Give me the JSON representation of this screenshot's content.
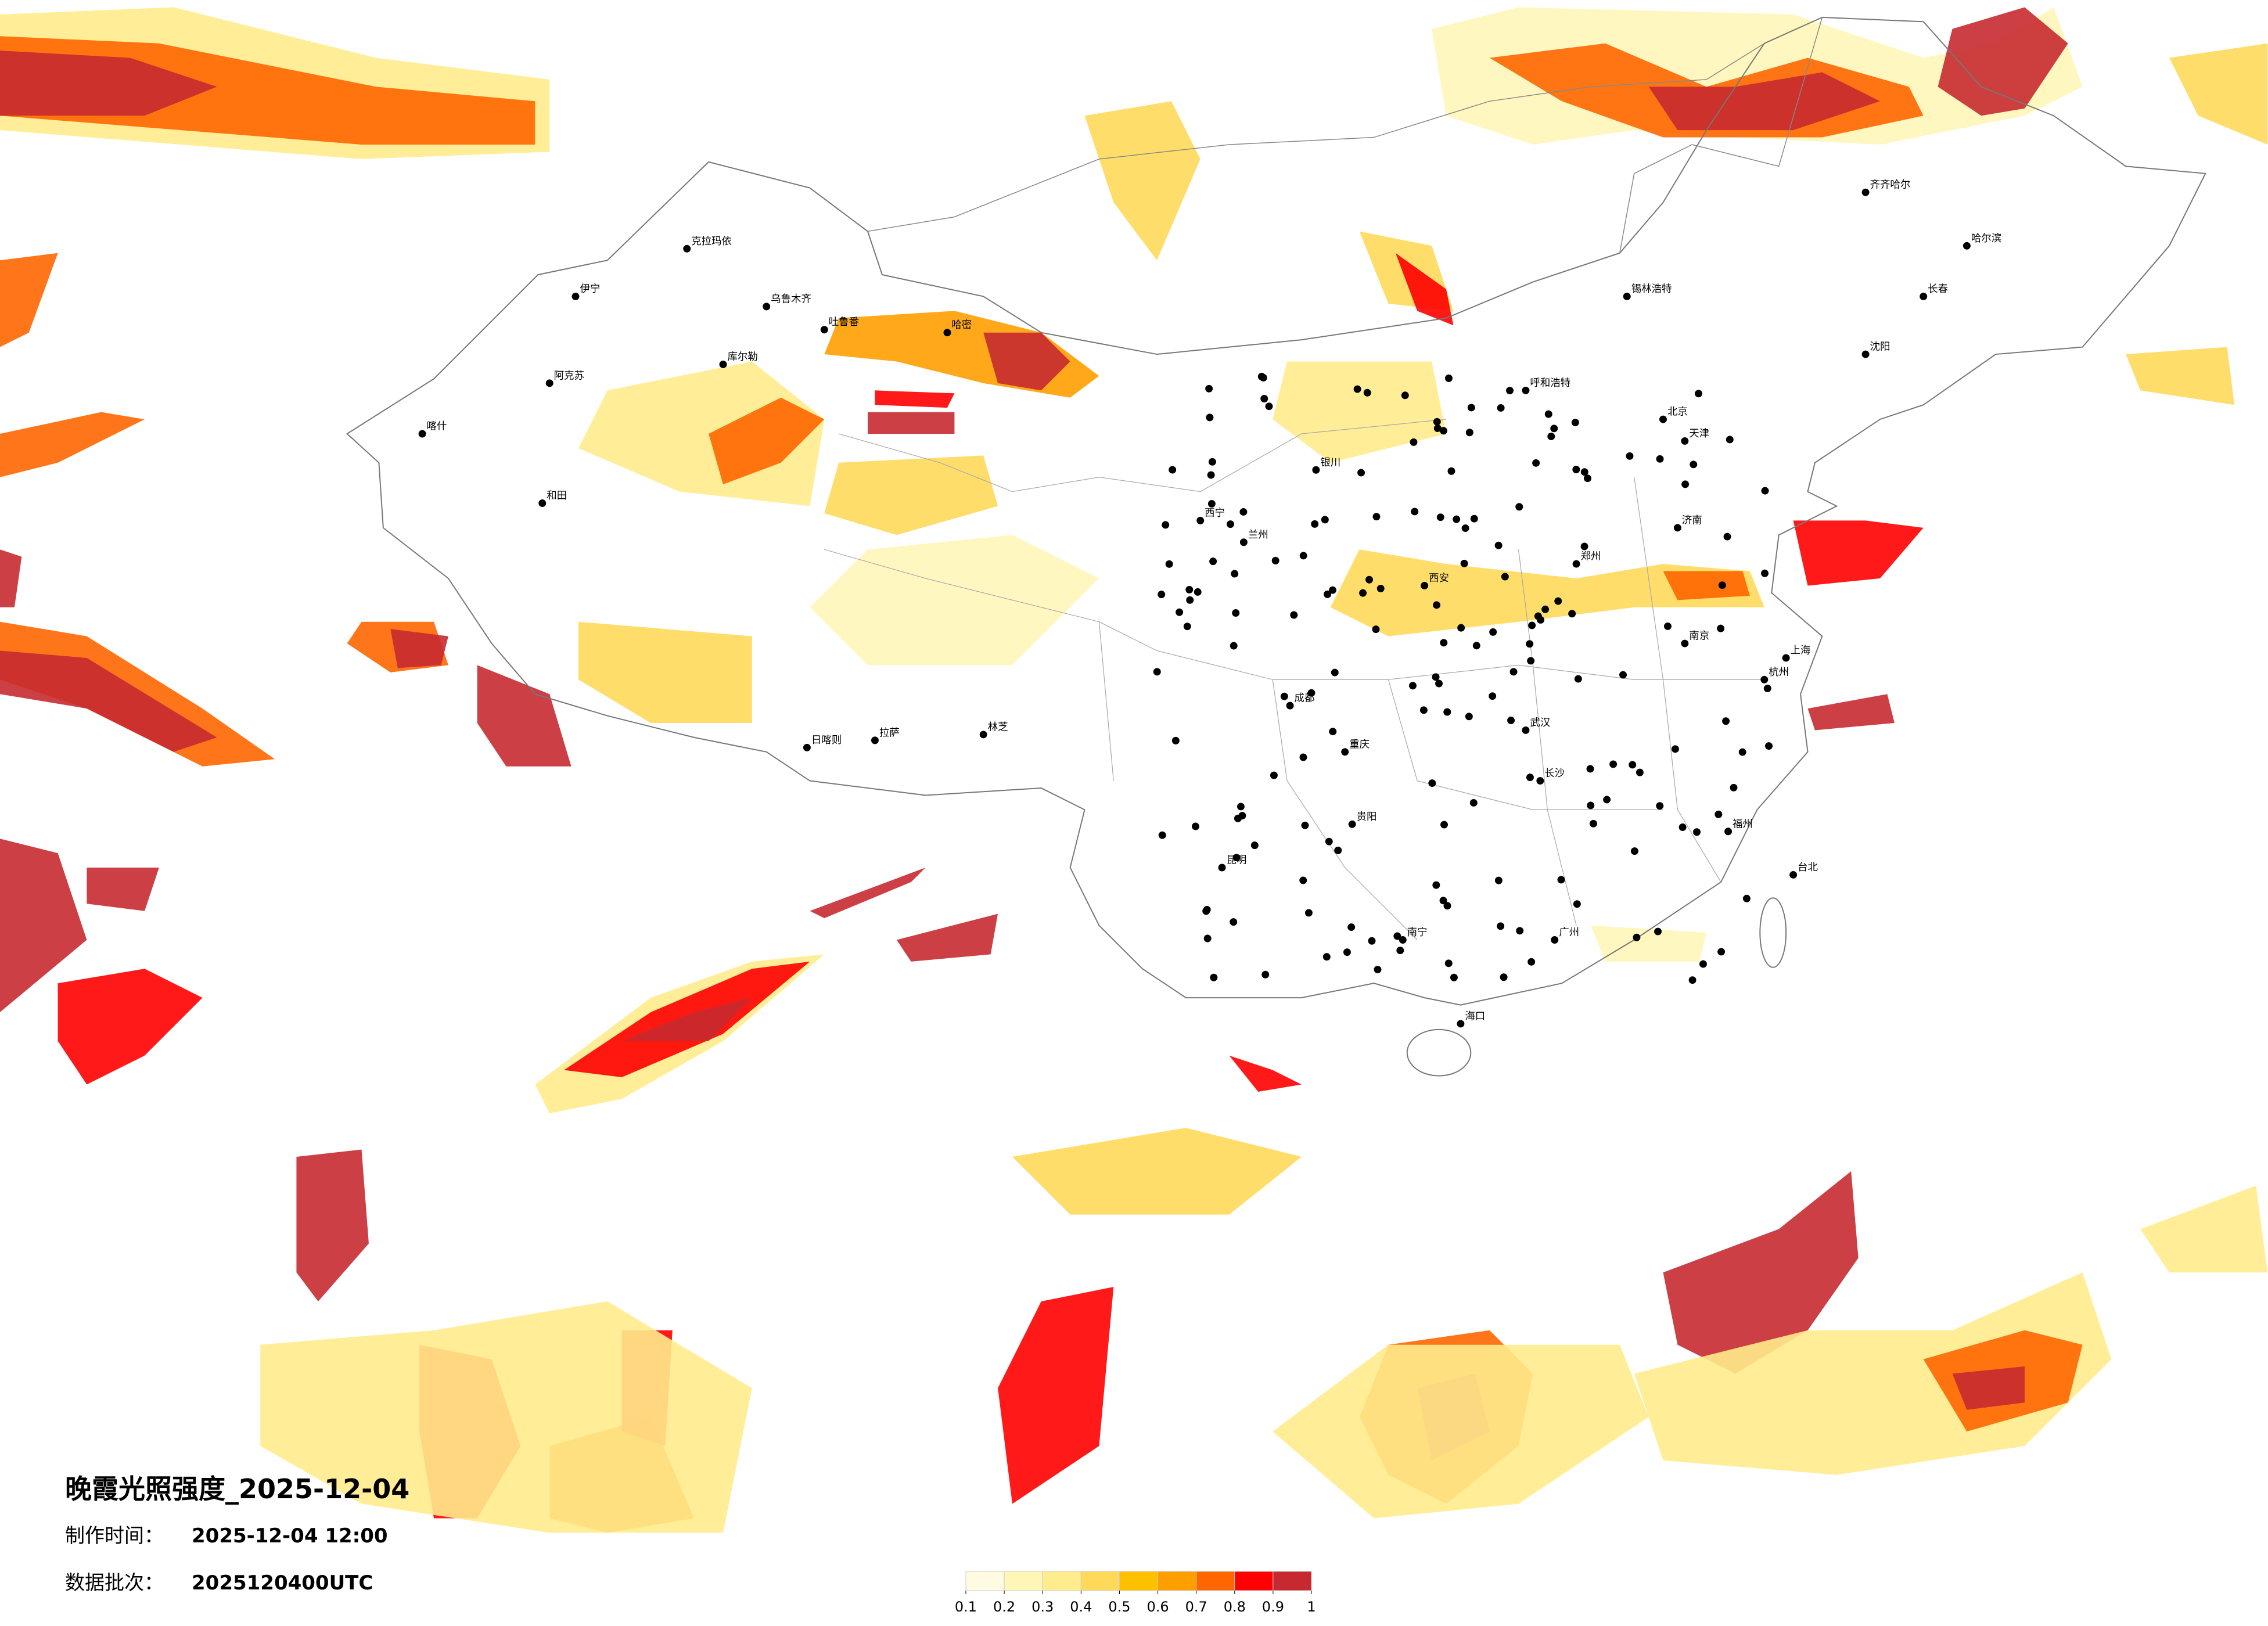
{
  "title": "晚霞光照强度_2025-12-04",
  "production_label": "制作时间：",
  "production_time": "2025-12-04 12:00",
  "batch_label": "数据批次：",
  "batch": "2025120400UTC",
  "legend": {
    "colors": [
      "#fffbe3",
      "#fff6b8",
      "#ffec8c",
      "#ffd95a",
      "#ffc000",
      "#ff9e00",
      "#ff6600",
      "#ff0000",
      "#c62a30"
    ],
    "ticks": [
      0.1,
      0.2,
      0.3,
      0.4,
      0.5,
      0.6,
      0.7,
      0.8,
      0.9,
      1
    ]
  },
  "cities": [
    "乌鲁木齐",
    "克拉玛依",
    "伊宁",
    "阿克苏",
    "喀什",
    "和田",
    "哈密",
    "吐鲁番",
    "库尔勒",
    "西宁",
    "拉萨",
    "日喀则",
    "林芝",
    "成都",
    "重庆",
    "昆明",
    "贵阳",
    "南宁",
    "海口",
    "广州",
    "福州",
    "台北",
    "杭州",
    "上海",
    "南京",
    "武汉",
    "长沙",
    "郑州",
    "西安",
    "兰州",
    "银川",
    "呼和浩特",
    "北京",
    "天津",
    "济南",
    "沈阳",
    "长春",
    "哈尔滨",
    "齐齐哈尔",
    "锡林浩特"
  ]
}
